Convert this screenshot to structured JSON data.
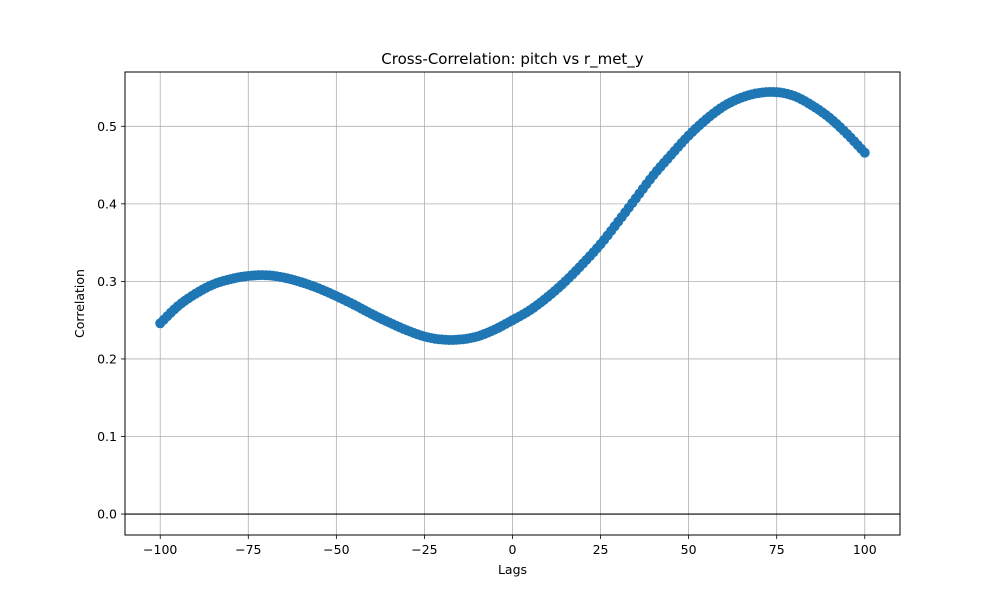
{
  "chart_data": {
    "type": "scatter",
    "title": "Cross-Correlation: pitch vs r_met_y",
    "xlabel": "Lags",
    "ylabel": "Correlation",
    "xlim": [
      -110,
      110
    ],
    "ylim": [
      -0.027,
      0.57
    ],
    "xticks": [
      -100,
      -75,
      -50,
      -25,
      0,
      25,
      50,
      75,
      100
    ],
    "xtick_labels": [
      "−100",
      "−75",
      "−50",
      "−25",
      "0",
      "25",
      "50",
      "75",
      "100"
    ],
    "yticks": [
      0.0,
      0.1,
      0.2,
      0.3,
      0.4,
      0.5
    ],
    "ytick_labels": [
      "0.0",
      "0.1",
      "0.2",
      "0.3",
      "0.4",
      "0.5"
    ],
    "grid": true,
    "reference_line_y": 0,
    "marker": "circle",
    "line_connected": true,
    "series_color": "#1f77b4",
    "grid_color": "#b0b0b0",
    "x_range": [
      -100,
      100
    ],
    "anchor_points": {
      "x": [
        -100,
        -95,
        -90,
        -85,
        -80,
        -75,
        -70,
        -65,
        -60,
        -55,
        -50,
        -45,
        -40,
        -35,
        -30,
        -25,
        -20,
        -15,
        -10,
        -5,
        0,
        5,
        10,
        15,
        20,
        25,
        30,
        35,
        40,
        45,
        50,
        55,
        60,
        65,
        70,
        75,
        80,
        85,
        90,
        95,
        100
      ],
      "y": [
        0.246,
        0.268,
        0.284,
        0.296,
        0.303,
        0.307,
        0.308,
        0.305,
        0.299,
        0.291,
        0.281,
        0.27,
        0.258,
        0.247,
        0.237,
        0.229,
        0.225,
        0.225,
        0.229,
        0.238,
        0.25,
        0.263,
        0.28,
        0.3,
        0.323,
        0.348,
        0.377,
        0.407,
        0.437,
        0.463,
        0.488,
        0.509,
        0.526,
        0.537,
        0.543,
        0.544,
        0.539,
        0.527,
        0.511,
        0.49,
        0.466
      ]
    }
  }
}
